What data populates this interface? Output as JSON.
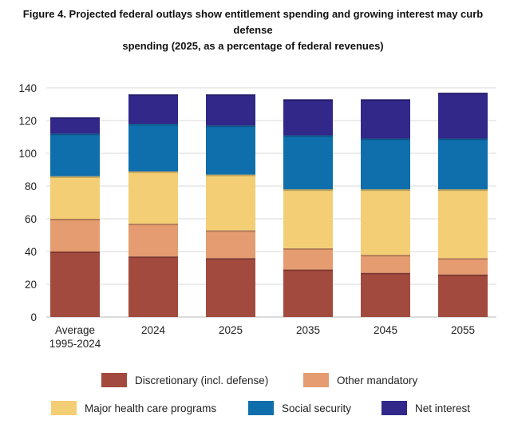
{
  "title_line1": "Figure 4. Projected federal outlays show entitlement spending and growing interest may curb defense",
  "title_line2": "spending (2025, as a percentage of federal revenues)",
  "chart_data": {
    "type": "bar",
    "stacked": true,
    "title": "Figure 4. Projected federal outlays show entitlement spending and growing interest may curb defense spending (2025, as a percentage of federal revenues)",
    "categories": [
      [
        "Average",
        "1995-2024"
      ],
      [
        "2024"
      ],
      [
        "2025"
      ],
      [
        "2035"
      ],
      [
        "2045"
      ],
      [
        "2055"
      ]
    ],
    "series": [
      {
        "name": "Discretionary (incl. defense)",
        "color": "#a34a3f",
        "values": [
          40,
          37,
          36,
          29,
          27,
          26
        ]
      },
      {
        "name": "Other mandatory",
        "color": "#e49c70",
        "values": [
          20,
          20,
          17,
          13,
          11,
          10
        ]
      },
      {
        "name": "Major health care programs",
        "color": "#f3ce74",
        "values": [
          26,
          32,
          34,
          36,
          40,
          42
        ]
      },
      {
        "name": "Social security",
        "color": "#0f6fad",
        "values": [
          26,
          29,
          30,
          33,
          31,
          31
        ]
      },
      {
        "name": "Net interest",
        "color": "#31288a",
        "values": [
          10,
          18,
          19,
          22,
          24,
          28
        ]
      }
    ],
    "ylim": [
      0,
      140
    ],
    "yticks": [
      0,
      20,
      40,
      60,
      80,
      100,
      120,
      140
    ],
    "grid": true,
    "legend_position": "bottom",
    "legend_rows": [
      [
        0,
        1
      ],
      [
        2,
        3,
        4
      ]
    ]
  }
}
